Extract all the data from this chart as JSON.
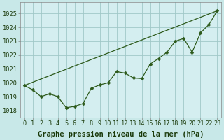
{
  "background_color": "#c8e8e8",
  "plot_bg_color": "#d4eef0",
  "grid_color": "#a0c8c8",
  "line_color": "#2d5a1b",
  "xlim": [
    -0.5,
    23.5
  ],
  "ylim": [
    1017.5,
    1025.8
  ],
  "yticks": [
    1018,
    1019,
    1020,
    1021,
    1022,
    1023,
    1024,
    1025
  ],
  "xticks": [
    0,
    1,
    2,
    3,
    4,
    5,
    6,
    7,
    8,
    9,
    10,
    11,
    12,
    13,
    14,
    15,
    16,
    17,
    18,
    19,
    20,
    21,
    22,
    23
  ],
  "series1_x": [
    0,
    1,
    2,
    3,
    4,
    5,
    6,
    7,
    8,
    9,
    10,
    11,
    12,
    13,
    14,
    15,
    16,
    17,
    18,
    19,
    20,
    21,
    22,
    23
  ],
  "series1_y": [
    1019.8,
    1019.5,
    1019.0,
    1019.2,
    1019.0,
    1018.2,
    1018.3,
    1018.5,
    1019.6,
    1019.85,
    1020.0,
    1020.8,
    1020.7,
    1020.35,
    1020.3,
    1021.35,
    1021.75,
    1022.2,
    1023.0,
    1023.2,
    1022.2,
    1023.6,
    1024.2,
    1025.2
  ],
  "series2_x": [
    0,
    23
  ],
  "series2_y": [
    1019.8,
    1025.2
  ],
  "xlabel": "Graphe pression niveau de la mer (hPa)",
  "xlabel_fontsize": 7.5,
  "tick_fontsize": 6.2,
  "marker": "D",
  "marker_size": 2.5,
  "linewidth": 0.9
}
